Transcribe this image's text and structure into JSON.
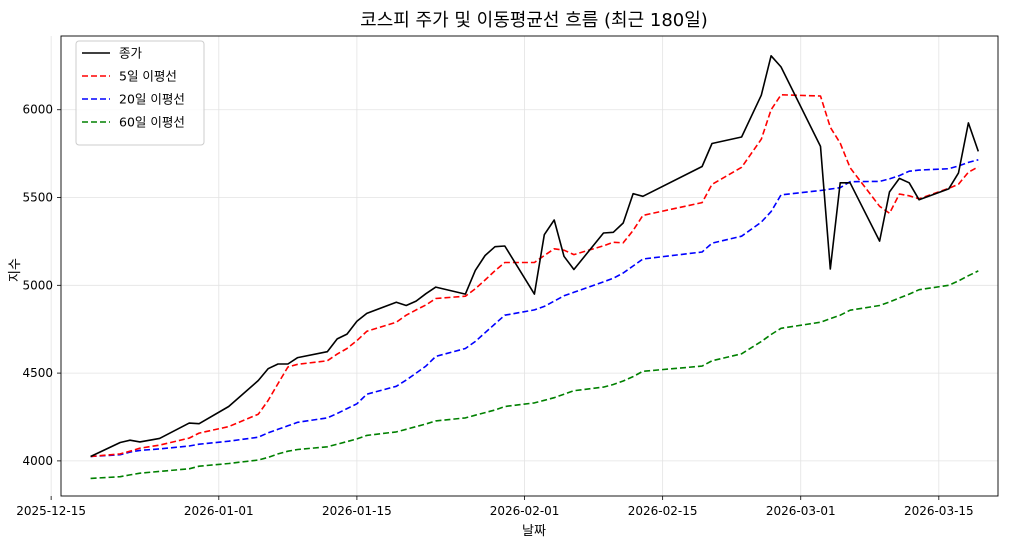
{
  "chart_data": {
    "type": "line",
    "title": "코스피 주가 및 이동평균선 흐름 (최근 180일)",
    "xlabel": "날짜",
    "ylabel": "지수",
    "xlim": [
      "2025-12-16",
      "2026-03-21"
    ],
    "ylim": [
      3800,
      6420
    ],
    "x_ticks": [
      "2025-12-15",
      "2026-01-01",
      "2026-01-15",
      "2026-02-01",
      "2026-02-15",
      "2026-03-01",
      "2026-03-15"
    ],
    "y_ticks": [
      4000,
      4500,
      5000,
      5500,
      6000
    ],
    "grid": true,
    "legend": "top-left",
    "series": [
      {
        "name": "종가",
        "color": "#000000",
        "dash": "solid",
        "points": [
          [
            "2025-12-19",
            4025
          ],
          [
            "2025-12-22",
            4105
          ],
          [
            "2025-12-23",
            4118
          ],
          [
            "2025-12-24",
            4108
          ],
          [
            "2025-12-26",
            4128
          ],
          [
            "2025-12-29",
            4215
          ],
          [
            "2025-12-30",
            4212
          ],
          [
            "2026-01-02",
            4310
          ],
          [
            "2026-01-05",
            4458
          ],
          [
            "2026-01-06",
            4525
          ],
          [
            "2026-01-07",
            4552
          ],
          [
            "2026-01-08",
            4552
          ],
          [
            "2026-01-09",
            4588
          ],
          [
            "2026-01-12",
            4622
          ],
          [
            "2026-01-13",
            4695
          ],
          [
            "2026-01-14",
            4722
          ],
          [
            "2026-01-15",
            4795
          ],
          [
            "2026-01-16",
            4840
          ],
          [
            "2026-01-19",
            4904
          ],
          [
            "2026-01-20",
            4885
          ],
          [
            "2026-01-21",
            4910
          ],
          [
            "2026-01-22",
            4952
          ],
          [
            "2026-01-23",
            4990
          ],
          [
            "2026-01-26",
            4950
          ],
          [
            "2026-01-27",
            5085
          ],
          [
            "2026-01-28",
            5170
          ],
          [
            "2026-01-29",
            5220
          ],
          [
            "2026-01-30",
            5224
          ],
          [
            "2026-02-02",
            4950
          ],
          [
            "2026-02-03",
            5288
          ],
          [
            "2026-02-04",
            5372
          ],
          [
            "2026-02-05",
            5165
          ],
          [
            "2026-02-06",
            5090
          ],
          [
            "2026-02-09",
            5298
          ],
          [
            "2026-02-10",
            5302
          ],
          [
            "2026-02-11",
            5355
          ],
          [
            "2026-02-12",
            5522
          ],
          [
            "2026-02-13",
            5507
          ],
          [
            "2026-02-19",
            5677
          ],
          [
            "2026-02-20",
            5808
          ],
          [
            "2026-02-23",
            5845
          ],
          [
            "2026-02-25",
            6083
          ],
          [
            "2026-02-26",
            6307
          ],
          [
            "2026-02-27",
            6244
          ],
          [
            "2026-03-03",
            5791
          ],
          [
            "2026-03-04",
            5093
          ],
          [
            "2026-03-05",
            5584
          ],
          [
            "2026-03-06",
            5584
          ],
          [
            "2026-03-09",
            5252
          ],
          [
            "2026-03-10",
            5532
          ],
          [
            "2026-03-11",
            5609
          ],
          [
            "2026-03-12",
            5584
          ],
          [
            "2026-03-13",
            5487
          ],
          [
            "2026-03-16",
            5549
          ],
          [
            "2026-03-17",
            5640
          ],
          [
            "2026-03-18",
            5925
          ],
          [
            "2026-03-19",
            5763
          ]
        ]
      },
      {
        "name": "5일 이평선",
        "color": "#ff0000",
        "dash": "dashed",
        "points": [
          [
            "2025-12-19",
            4025
          ],
          [
            "2025-12-22",
            4040
          ],
          [
            "2025-12-23",
            4055
          ],
          [
            "2025-12-24",
            4072
          ],
          [
            "2025-12-26",
            4090
          ],
          [
            "2025-12-29",
            4130
          ],
          [
            "2025-12-30",
            4158
          ],
          [
            "2026-01-02",
            4195
          ],
          [
            "2026-01-05",
            4266
          ],
          [
            "2026-01-06",
            4344
          ],
          [
            "2026-01-07",
            4440
          ],
          [
            "2026-01-08",
            4535
          ],
          [
            "2026-01-09",
            4550
          ],
          [
            "2026-01-12",
            4570
          ],
          [
            "2026-01-13",
            4608
          ],
          [
            "2026-01-14",
            4640
          ],
          [
            "2026-01-15",
            4685
          ],
          [
            "2026-01-16",
            4738
          ],
          [
            "2026-01-19",
            4790
          ],
          [
            "2026-01-20",
            4830
          ],
          [
            "2026-01-21",
            4860
          ],
          [
            "2026-01-22",
            4888
          ],
          [
            "2026-01-23",
            4925
          ],
          [
            "2026-01-26",
            4938
          ],
          [
            "2026-01-27",
            4980
          ],
          [
            "2026-01-28",
            5030
          ],
          [
            "2026-01-29",
            5083
          ],
          [
            "2026-01-30",
            5130
          ],
          [
            "2026-02-02",
            5130
          ],
          [
            "2026-02-03",
            5170
          ],
          [
            "2026-02-04",
            5208
          ],
          [
            "2026-02-05",
            5200
          ],
          [
            "2026-02-06",
            5175
          ],
          [
            "2026-02-09",
            5225
          ],
          [
            "2026-02-10",
            5245
          ],
          [
            "2026-02-11",
            5242
          ],
          [
            "2026-02-12",
            5312
          ],
          [
            "2026-02-13",
            5398
          ],
          [
            "2026-02-19",
            5471
          ],
          [
            "2026-02-20",
            5575
          ],
          [
            "2026-02-23",
            5672
          ],
          [
            "2026-02-25",
            5832
          ],
          [
            "2026-02-26",
            6000
          ],
          [
            "2026-02-27",
            6085
          ],
          [
            "2026-03-03",
            6078
          ],
          [
            "2026-03-04",
            5900
          ],
          [
            "2026-03-05",
            5810
          ],
          [
            "2026-03-06",
            5670
          ],
          [
            "2026-03-09",
            5450
          ],
          [
            "2026-03-10",
            5410
          ],
          [
            "2026-03-11",
            5520
          ],
          [
            "2026-03-12",
            5510
          ],
          [
            "2026-03-13",
            5493
          ],
          [
            "2026-03-16",
            5552
          ],
          [
            "2026-03-17",
            5576
          ],
          [
            "2026-03-18",
            5644
          ],
          [
            "2026-03-19",
            5675
          ]
        ]
      },
      {
        "name": "20일 이평선",
        "color": "#0000ff",
        "dash": "dashed",
        "points": [
          [
            "2025-12-19",
            4025
          ],
          [
            "2025-12-22",
            4035
          ],
          [
            "2025-12-23",
            4050
          ],
          [
            "2025-12-24",
            4060
          ],
          [
            "2025-12-26",
            4068
          ],
          [
            "2025-12-29",
            4085
          ],
          [
            "2025-12-30",
            4095
          ],
          [
            "2026-01-02",
            4112
          ],
          [
            "2026-01-05",
            4135
          ],
          [
            "2026-01-06",
            4160
          ],
          [
            "2026-01-07",
            4180
          ],
          [
            "2026-01-08",
            4200
          ],
          [
            "2026-01-09",
            4220
          ],
          [
            "2026-01-12",
            4245
          ],
          [
            "2026-01-13",
            4270
          ],
          [
            "2026-01-14",
            4298
          ],
          [
            "2026-01-15",
            4325
          ],
          [
            "2026-01-16",
            4380
          ],
          [
            "2026-01-19",
            4425
          ],
          [
            "2026-01-20",
            4460
          ],
          [
            "2026-01-21",
            4500
          ],
          [
            "2026-01-22",
            4540
          ],
          [
            "2026-01-23",
            4595
          ],
          [
            "2026-01-26",
            4640
          ],
          [
            "2026-01-27",
            4680
          ],
          [
            "2026-01-28",
            4730
          ],
          [
            "2026-01-29",
            4780
          ],
          [
            "2026-01-30",
            4830
          ],
          [
            "2026-02-02",
            4860
          ],
          [
            "2026-02-03",
            4880
          ],
          [
            "2026-02-04",
            4910
          ],
          [
            "2026-02-05",
            4940
          ],
          [
            "2026-02-06",
            4960
          ],
          [
            "2026-02-09",
            5020
          ],
          [
            "2026-02-10",
            5040
          ],
          [
            "2026-02-11",
            5070
          ],
          [
            "2026-02-12",
            5110
          ],
          [
            "2026-02-13",
            5150
          ],
          [
            "2026-02-19",
            5190
          ],
          [
            "2026-02-20",
            5240
          ],
          [
            "2026-02-23",
            5280
          ],
          [
            "2026-02-25",
            5360
          ],
          [
            "2026-02-26",
            5420
          ],
          [
            "2026-02-27",
            5515
          ],
          [
            "2026-03-03",
            5540
          ],
          [
            "2026-03-04",
            5548
          ],
          [
            "2026-03-05",
            5556
          ],
          [
            "2026-03-06",
            5590
          ],
          [
            "2026-03-09",
            5592
          ],
          [
            "2026-03-10",
            5606
          ],
          [
            "2026-03-11",
            5625
          ],
          [
            "2026-03-12",
            5650
          ],
          [
            "2026-03-13",
            5656
          ],
          [
            "2026-03-16",
            5664
          ],
          [
            "2026-03-17",
            5680
          ],
          [
            "2026-03-18",
            5700
          ],
          [
            "2026-03-19",
            5715
          ]
        ]
      },
      {
        "name": "60일 이평선",
        "color": "#008000",
        "dash": "dashed",
        "points": [
          [
            "2025-12-19",
            3900
          ],
          [
            "2025-12-22",
            3910
          ],
          [
            "2025-12-23",
            3920
          ],
          [
            "2025-12-24",
            3930
          ],
          [
            "2025-12-26",
            3940
          ],
          [
            "2025-12-29",
            3955
          ],
          [
            "2025-12-30",
            3970
          ],
          [
            "2026-01-02",
            3985
          ],
          [
            "2026-01-05",
            4005
          ],
          [
            "2026-01-06",
            4020
          ],
          [
            "2026-01-07",
            4040
          ],
          [
            "2026-01-08",
            4055
          ],
          [
            "2026-01-09",
            4065
          ],
          [
            "2026-01-12",
            4080
          ],
          [
            "2026-01-13",
            4095
          ],
          [
            "2026-01-14",
            4110
          ],
          [
            "2026-01-15",
            4125
          ],
          [
            "2026-01-16",
            4145
          ],
          [
            "2026-01-19",
            4165
          ],
          [
            "2026-01-20",
            4180
          ],
          [
            "2026-01-21",
            4195
          ],
          [
            "2026-01-22",
            4210
          ],
          [
            "2026-01-23",
            4228
          ],
          [
            "2026-01-26",
            4245
          ],
          [
            "2026-01-27",
            4260
          ],
          [
            "2026-01-28",
            4275
          ],
          [
            "2026-01-29",
            4290
          ],
          [
            "2026-01-30",
            4310
          ],
          [
            "2026-02-02",
            4330
          ],
          [
            "2026-02-03",
            4345
          ],
          [
            "2026-02-04",
            4360
          ],
          [
            "2026-02-05",
            4380
          ],
          [
            "2026-02-06",
            4400
          ],
          [
            "2026-02-09",
            4420
          ],
          [
            "2026-02-10",
            4435
          ],
          [
            "2026-02-11",
            4455
          ],
          [
            "2026-02-12",
            4480
          ],
          [
            "2026-02-13",
            4510
          ],
          [
            "2026-02-19",
            4540
          ],
          [
            "2026-02-20",
            4570
          ],
          [
            "2026-02-23",
            4610
          ],
          [
            "2026-02-25",
            4680
          ],
          [
            "2026-02-26",
            4720
          ],
          [
            "2026-02-27",
            4755
          ],
          [
            "2026-03-03",
            4790
          ],
          [
            "2026-03-04",
            4810
          ],
          [
            "2026-03-05",
            4830
          ],
          [
            "2026-03-06",
            4858
          ],
          [
            "2026-03-09",
            4885
          ],
          [
            "2026-03-10",
            4905
          ],
          [
            "2026-03-11",
            4928
          ],
          [
            "2026-03-12",
            4950
          ],
          [
            "2026-03-13",
            4975
          ],
          [
            "2026-03-16",
            5000
          ],
          [
            "2026-03-17",
            5025
          ],
          [
            "2026-03-18",
            5055
          ],
          [
            "2026-03-19",
            5082
          ]
        ]
      }
    ]
  }
}
